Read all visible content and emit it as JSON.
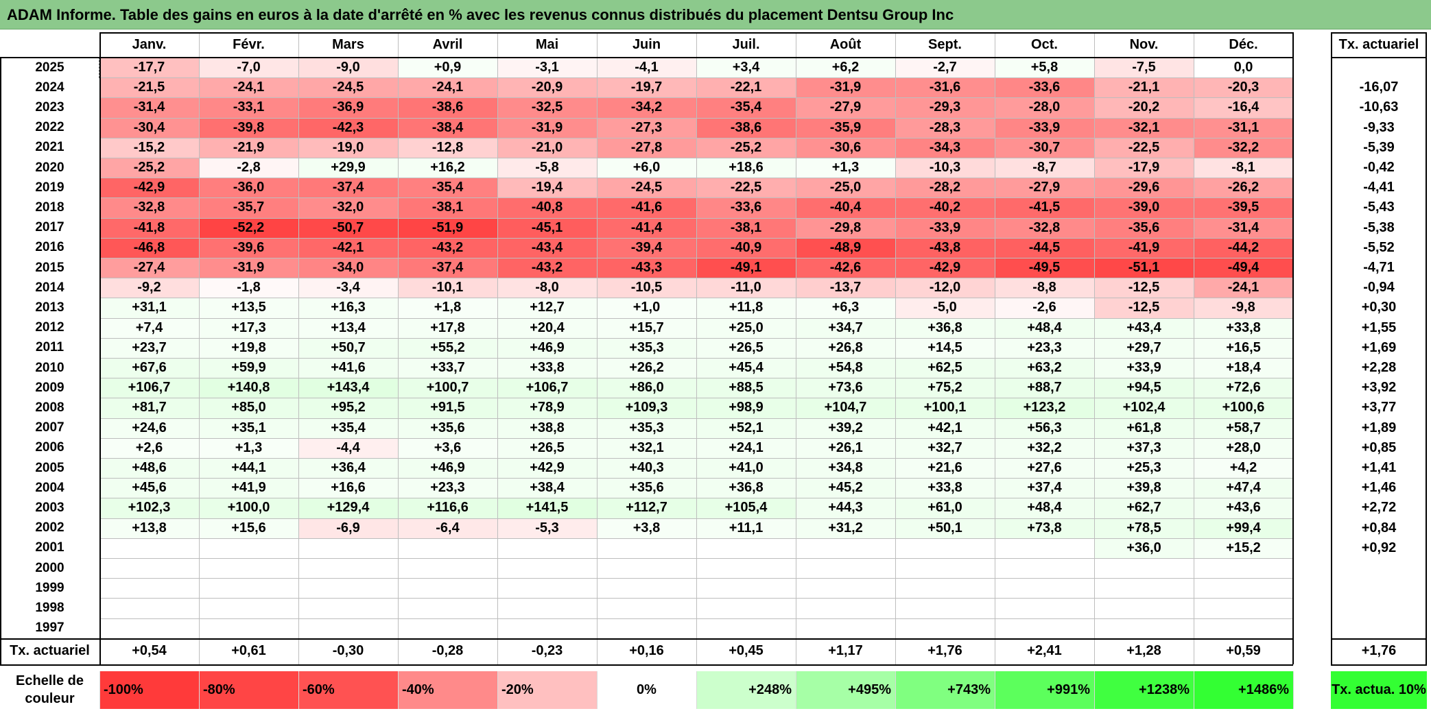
{
  "title": "ADAM Informe. Table des gains en euros à la date d'arrêté en % avec les revenus connus distribués du placement Dentsu Group Inc",
  "months": [
    "Janv.",
    "Févr.",
    "Mars",
    "Avril",
    "Mai",
    "Juin",
    "Juil.",
    "Août",
    "Sept.",
    "Oct.",
    "Nov.",
    "Déc."
  ],
  "side_header": "Tx. actuariel",
  "colors": {
    "neg_full": "#ff3a3a",
    "pos_full": "#33ff33",
    "title_bg": "#8cc98c"
  },
  "rows": [
    {
      "year": "2025",
      "values": [
        "-17,7",
        "-7,0",
        "-9,0",
        "+0,9",
        "-3,1",
        "-4,1",
        "+3,4",
        "+6,2",
        "-2,7",
        "+5,8",
        "-7,5",
        "0,0"
      ],
      "tx": ""
    },
    {
      "year": "2024",
      "values": [
        "-21,5",
        "-24,1",
        "-24,5",
        "-24,1",
        "-20,9",
        "-19,7",
        "-22,1",
        "-31,9",
        "-31,6",
        "-33,6",
        "-21,1",
        "-20,3"
      ],
      "tx": "-16,07"
    },
    {
      "year": "2023",
      "values": [
        "-31,4",
        "-33,1",
        "-36,9",
        "-38,6",
        "-32,5",
        "-34,2",
        "-35,4",
        "-27,9",
        "-29,3",
        "-28,0",
        "-20,2",
        "-16,4"
      ],
      "tx": "-10,63"
    },
    {
      "year": "2022",
      "values": [
        "-30,4",
        "-39,8",
        "-42,3",
        "-38,4",
        "-31,9",
        "-27,3",
        "-38,6",
        "-35,9",
        "-28,3",
        "-33,9",
        "-32,1",
        "-31,1"
      ],
      "tx": "-9,33"
    },
    {
      "year": "2021",
      "values": [
        "-15,2",
        "-21,9",
        "-19,0",
        "-12,8",
        "-21,0",
        "-27,8",
        "-25,2",
        "-30,6",
        "-34,3",
        "-30,7",
        "-22,5",
        "-32,2"
      ],
      "tx": "-5,39"
    },
    {
      "year": "2020",
      "values": [
        "-25,2",
        "-2,8",
        "+29,9",
        "+16,2",
        "-5,8",
        "+6,0",
        "+18,6",
        "+1,3",
        "-10,3",
        "-8,7",
        "-17,9",
        "-8,1"
      ],
      "tx": "-0,42"
    },
    {
      "year": "2019",
      "values": [
        "-42,9",
        "-36,0",
        "-37,4",
        "-35,4",
        "-19,4",
        "-24,5",
        "-22,5",
        "-25,0",
        "-28,2",
        "-27,9",
        "-29,6",
        "-26,2"
      ],
      "tx": "-4,41"
    },
    {
      "year": "2018",
      "values": [
        "-32,8",
        "-35,7",
        "-32,0",
        "-38,1",
        "-40,8",
        "-41,6",
        "-33,6",
        "-40,4",
        "-40,2",
        "-41,5",
        "-39,0",
        "-39,5"
      ],
      "tx": "-5,43"
    },
    {
      "year": "2017",
      "values": [
        "-41,8",
        "-52,2",
        "-50,7",
        "-51,9",
        "-45,1",
        "-41,4",
        "-38,1",
        "-29,8",
        "-33,9",
        "-32,8",
        "-35,6",
        "-31,4"
      ],
      "tx": "-5,38"
    },
    {
      "year": "2016",
      "values": [
        "-46,8",
        "-39,6",
        "-42,1",
        "-43,2",
        "-43,4",
        "-39,4",
        "-40,9",
        "-48,9",
        "-43,8",
        "-44,5",
        "-41,9",
        "-44,2"
      ],
      "tx": "-5,52"
    },
    {
      "year": "2015",
      "values": [
        "-27,4",
        "-31,9",
        "-34,0",
        "-37,4",
        "-43,2",
        "-43,3",
        "-49,1",
        "-42,6",
        "-42,9",
        "-49,5",
        "-51,1",
        "-49,4"
      ],
      "tx": "-4,71"
    },
    {
      "year": "2014",
      "values": [
        "-9,2",
        "-1,8",
        "-3,4",
        "-10,1",
        "-8,0",
        "-10,5",
        "-11,0",
        "-13,7",
        "-12,0",
        "-8,8",
        "-12,5",
        "-24,1"
      ],
      "tx": "-0,94"
    },
    {
      "year": "2013",
      "values": [
        "+31,1",
        "+13,5",
        "+16,3",
        "+1,8",
        "+12,7",
        "+1,0",
        "+11,8",
        "+6,3",
        "-5,0",
        "-2,6",
        "-12,5",
        "-9,8"
      ],
      "tx": "+0,30"
    },
    {
      "year": "2012",
      "values": [
        "+7,4",
        "+17,3",
        "+13,4",
        "+17,8",
        "+20,4",
        "+15,7",
        "+25,0",
        "+34,7",
        "+36,8",
        "+48,4",
        "+43,4",
        "+33,8"
      ],
      "tx": "+1,55"
    },
    {
      "year": "2011",
      "values": [
        "+23,7",
        "+19,8",
        "+50,7",
        "+55,2",
        "+46,9",
        "+35,3",
        "+26,5",
        "+26,8",
        "+14,5",
        "+23,3",
        "+29,7",
        "+16,5"
      ],
      "tx": "+1,69"
    },
    {
      "year": "2010",
      "values": [
        "+67,6",
        "+59,9",
        "+41,6",
        "+33,7",
        "+33,8",
        "+26,2",
        "+45,4",
        "+54,8",
        "+62,5",
        "+63,2",
        "+33,9",
        "+18,4"
      ],
      "tx": "+2,28"
    },
    {
      "year": "2009",
      "values": [
        "+106,7",
        "+140,8",
        "+143,4",
        "+100,7",
        "+106,7",
        "+86,0",
        "+88,5",
        "+73,6",
        "+75,2",
        "+88,7",
        "+94,5",
        "+72,6"
      ],
      "tx": "+3,92"
    },
    {
      "year": "2008",
      "values": [
        "+81,7",
        "+85,0",
        "+95,2",
        "+91,5",
        "+78,9",
        "+109,3",
        "+98,9",
        "+104,7",
        "+100,1",
        "+123,2",
        "+102,4",
        "+100,6"
      ],
      "tx": "+3,77"
    },
    {
      "year": "2007",
      "values": [
        "+24,6",
        "+35,1",
        "+35,4",
        "+35,6",
        "+38,8",
        "+35,3",
        "+52,1",
        "+39,2",
        "+42,1",
        "+56,3",
        "+61,8",
        "+58,7"
      ],
      "tx": "+1,89"
    },
    {
      "year": "2006",
      "values": [
        "+2,6",
        "+1,3",
        "-4,4",
        "+3,6",
        "+26,5",
        "+32,1",
        "+24,1",
        "+26,1",
        "+32,7",
        "+32,2",
        "+37,3",
        "+28,0"
      ],
      "tx": "+0,85"
    },
    {
      "year": "2005",
      "values": [
        "+48,6",
        "+44,1",
        "+36,4",
        "+46,9",
        "+42,9",
        "+40,3",
        "+41,0",
        "+34,8",
        "+21,6",
        "+27,6",
        "+25,3",
        "+4,2"
      ],
      "tx": "+1,41"
    },
    {
      "year": "2004",
      "values": [
        "+45,6",
        "+41,9",
        "+16,6",
        "+23,3",
        "+38,4",
        "+35,6",
        "+36,8",
        "+45,2",
        "+33,8",
        "+37,4",
        "+39,8",
        "+47,4"
      ],
      "tx": "+1,46"
    },
    {
      "year": "2003",
      "values": [
        "+102,3",
        "+100,0",
        "+129,4",
        "+116,6",
        "+141,5",
        "+112,7",
        "+105,4",
        "+44,3",
        "+61,0",
        "+48,4",
        "+62,7",
        "+43,6"
      ],
      "tx": "+2,72"
    },
    {
      "year": "2002",
      "values": [
        "+13,8",
        "+15,6",
        "-6,9",
        "-6,4",
        "-5,3",
        "+3,8",
        "+11,1",
        "+31,2",
        "+50,1",
        "+73,8",
        "+78,5",
        "+99,4"
      ],
      "tx": "+0,84"
    },
    {
      "year": "2001",
      "values": [
        "",
        "",
        "",
        "",
        "",
        "",
        "",
        "",
        "",
        "",
        "+36,0",
        "+15,2"
      ],
      "tx": "+0,92"
    },
    {
      "year": "2000",
      "values": [
        "",
        "",
        "",
        "",
        "",
        "",
        "",
        "",
        "",
        "",
        "",
        ""
      ],
      "tx": ""
    },
    {
      "year": "1999",
      "values": [
        "",
        "",
        "",
        "",
        "",
        "",
        "",
        "",
        "",
        "",
        "",
        ""
      ],
      "tx": ""
    },
    {
      "year": "1998",
      "values": [
        "",
        "",
        "",
        "",
        "",
        "",
        "",
        "",
        "",
        "",
        "",
        ""
      ],
      "tx": ""
    },
    {
      "year": "1997",
      "values": [
        "",
        "",
        "",
        "",
        "",
        "",
        "",
        "",
        "",
        "",
        "",
        ""
      ],
      "tx": ""
    }
  ],
  "footer": {
    "label": "Tx. actuariel",
    "values": [
      "+0,54",
      "+0,61",
      "-0,30",
      "-0,28",
      "-0,23",
      "+0,16",
      "+0,45",
      "+1,17",
      "+1,76",
      "+2,41",
      "+1,28",
      "+0,59"
    ],
    "total": "+1,76"
  },
  "scale": {
    "label": "Echelle de couleur",
    "items": [
      {
        "text": "-100%",
        "color": "#ff3a3a"
      },
      {
        "text": "-80%",
        "color": "#ff4545"
      },
      {
        "text": "-60%",
        "color": "#ff5252"
      },
      {
        "text": "-40%",
        "color": "#ff8a8a"
      },
      {
        "text": "-20%",
        "color": "#ffc0c0"
      },
      {
        "text": "0%",
        "color": "#ffffff"
      },
      {
        "text": "+248%",
        "color": "#ccffcc"
      },
      {
        "text": "+495%",
        "color": "#a6ffa6"
      },
      {
        "text": "+743%",
        "color": "#80ff80"
      },
      {
        "text": "+991%",
        "color": "#5cff5c"
      },
      {
        "text": "+1238%",
        "color": "#40ff40"
      },
      {
        "text": "+1486%",
        "color": "#33ff33"
      }
    ],
    "side": {
      "text": "Tx. actua. 10%",
      "color": "#33ff33"
    }
  }
}
